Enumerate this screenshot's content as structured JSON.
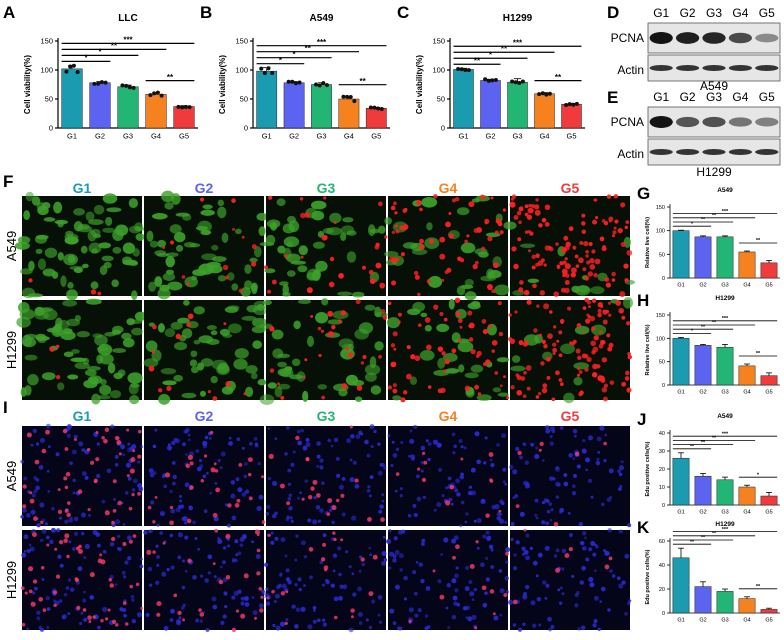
{
  "group_colors": [
    "#1a9bb0",
    "#5b63f0",
    "#23b574",
    "#f5821f",
    "#ef3b3b"
  ],
  "fluor_colors": {
    "live": "#3da02a",
    "dead": "#ff2020",
    "nuclei": "#2b2bd6",
    "edu": "#ff3a6a"
  },
  "panel_labels": [
    "A",
    "B",
    "C",
    "D",
    "E",
    "F",
    "G",
    "H",
    "I",
    "J",
    "K"
  ],
  "western_blot": [
    {
      "lanes": [
        "G1",
        "G2",
        "G3",
        "G4",
        "G5"
      ],
      "rows": [
        "PCNA",
        "Actin"
      ],
      "caption": "A549",
      "pcna_intensity": [
        1.0,
        0.95,
        0.92,
        0.75,
        0.45
      ]
    },
    {
      "lanes": [
        "G1",
        "G2",
        "G3",
        "G4",
        "G5"
      ],
      "rows": [
        "PCNA",
        "Actin"
      ],
      "caption": "H1299",
      "pcna_intensity": [
        1.0,
        0.7,
        0.72,
        0.55,
        0.5
      ]
    }
  ],
  "fluor_panels": [
    {
      "headers": [
        "G1",
        "G2",
        "G3",
        "G4",
        "G5"
      ],
      "rows": [
        "A549",
        "H1299"
      ],
      "live": [
        0.95,
        0.7,
        0.55,
        0.35,
        0.1
      ],
      "dead": [
        0.02,
        0.1,
        0.2,
        0.45,
        0.9
      ]
    },
    {
      "headers": [
        "G1",
        "G2",
        "G3",
        "G4",
        "G5"
      ],
      "rows": [
        "A549",
        "H1299"
      ],
      "edu": [
        0.45,
        0.25,
        0.18,
        0.12,
        0.06
      ]
    }
  ],
  "chart_data": [
    {
      "type": "bar",
      "title": "LLC",
      "ylabel": "Cell viability(%)",
      "categories": [
        "G1",
        "G2",
        "G3",
        "G4",
        "G5"
      ],
      "values": [
        102,
        78,
        71,
        58,
        37
      ],
      "errors": [
        6,
        2,
        3,
        3,
        1.5
      ],
      "ylim": [
        0,
        150
      ],
      "yticks": [
        0,
        50,
        100,
        150
      ],
      "sig": [
        [
          "*",
          "G1",
          "G2"
        ],
        [
          "*",
          "G1",
          "G3"
        ],
        [
          "**",
          "G1",
          "G4"
        ],
        [
          "***",
          "G1",
          "G5"
        ],
        [
          "**",
          "G4",
          "G5"
        ]
      ]
    },
    {
      "type": "bar",
      "title": "A549",
      "ylabel": "Cell viability(%)",
      "categories": [
        "G1",
        "G2",
        "G3",
        "G4",
        "G5"
      ],
      "values": [
        98,
        78,
        75,
        50,
        34
      ],
      "errors": [
        6,
        2,
        3,
        4,
        1.5
      ],
      "ylim": [
        0,
        150
      ],
      "yticks": [
        0,
        50,
        100,
        150
      ],
      "sig": [
        [
          "*",
          "G1",
          "G2"
        ],
        [
          "*",
          "G1",
          "G3"
        ],
        [
          "**",
          "G1",
          "G4"
        ],
        [
          "***",
          "G1",
          "G5"
        ],
        [
          "**",
          "G4",
          "G5"
        ]
      ]
    },
    {
      "type": "bar",
      "title": "H1299",
      "ylabel": "Cell viability(%)",
      "categories": [
        "G1",
        "G2",
        "G3",
        "G4",
        "G5"
      ],
      "values": [
        101,
        82,
        79,
        59,
        41
      ],
      "errors": [
        2,
        2,
        6,
        2,
        1.5
      ],
      "ylim": [
        0,
        150
      ],
      "yticks": [
        0,
        50,
        100,
        150
      ],
      "sig": [
        [
          "**",
          "G1",
          "G2"
        ],
        [
          "*",
          "G1",
          "G3"
        ],
        [
          "**",
          "G1",
          "G4"
        ],
        [
          "***",
          "G1",
          "G5"
        ],
        [
          "**",
          "G4",
          "G5"
        ]
      ]
    },
    {
      "type": "bar",
      "title": "A549",
      "ylabel": "Relative live cell(%)",
      "categories": [
        "G1",
        "G2",
        "G3",
        "G4",
        "G5"
      ],
      "values": [
        100,
        87,
        87,
        55,
        32
      ],
      "errors": [
        1,
        2,
        2,
        2,
        5
      ],
      "ylim": [
        0,
        150
      ],
      "yticks": [
        0,
        50,
        100,
        150
      ],
      "sig": [
        [
          "*",
          "G1",
          "G2"
        ],
        [
          "**",
          "G1",
          "G3"
        ],
        [
          "**",
          "G1",
          "G4"
        ],
        [
          "***",
          "G1",
          "G5"
        ],
        [
          "**",
          "G4",
          "G5"
        ]
      ]
    },
    {
      "type": "bar",
      "title": "H1299",
      "ylabel": "Relative live cell(%)",
      "categories": [
        "G1",
        "G2",
        "G3",
        "G4",
        "G5"
      ],
      "values": [
        100,
        85,
        81,
        41,
        20
      ],
      "errors": [
        2,
        2,
        6,
        4,
        6
      ],
      "ylim": [
        0,
        150
      ],
      "yticks": [
        0,
        50,
        100,
        150
      ],
      "sig": [
        [
          "*",
          "G1",
          "G2"
        ],
        [
          "**",
          "G1",
          "G3"
        ],
        [
          "**",
          "G1",
          "G4"
        ],
        [
          "***",
          "G1",
          "G5"
        ],
        [
          "**",
          "G4",
          "G5"
        ]
      ]
    },
    {
      "type": "bar",
      "title": "A549",
      "ylabel": "Edu positive cells(%)",
      "categories": [
        "G1",
        "G2",
        "G3",
        "G4",
        "G5"
      ],
      "values": [
        26,
        16,
        14,
        10,
        5
      ],
      "errors": [
        3,
        1.5,
        1.5,
        1,
        2
      ],
      "ylim": [
        0,
        40
      ],
      "yticks": [
        0,
        10,
        20,
        30,
        40
      ],
      "sig": [
        [
          "**",
          "G1",
          "G2"
        ],
        [
          "**",
          "G1",
          "G3"
        ],
        [
          "**",
          "G1",
          "G4"
        ],
        [
          "***",
          "G1",
          "G5"
        ],
        [
          "*",
          "G4",
          "G5"
        ]
      ]
    },
    {
      "type": "bar",
      "title": "H1299",
      "ylabel": "Edu positive cells(%)",
      "categories": [
        "G1",
        "G2",
        "G3",
        "G4",
        "G5"
      ],
      "values": [
        46,
        22,
        18,
        12,
        3
      ],
      "errors": [
        8,
        4,
        2,
        1.5,
        1
      ],
      "ylim": [
        0,
        60
      ],
      "yticks": [
        0,
        20,
        40,
        60
      ],
      "sig": [
        [
          "**",
          "G1",
          "G2"
        ],
        [
          "**",
          "G1",
          "G3"
        ],
        [
          "**",
          "G1",
          "G4"
        ],
        [
          "***",
          "G1",
          "G5"
        ],
        [
          "**",
          "G4",
          "G5"
        ]
      ]
    }
  ]
}
